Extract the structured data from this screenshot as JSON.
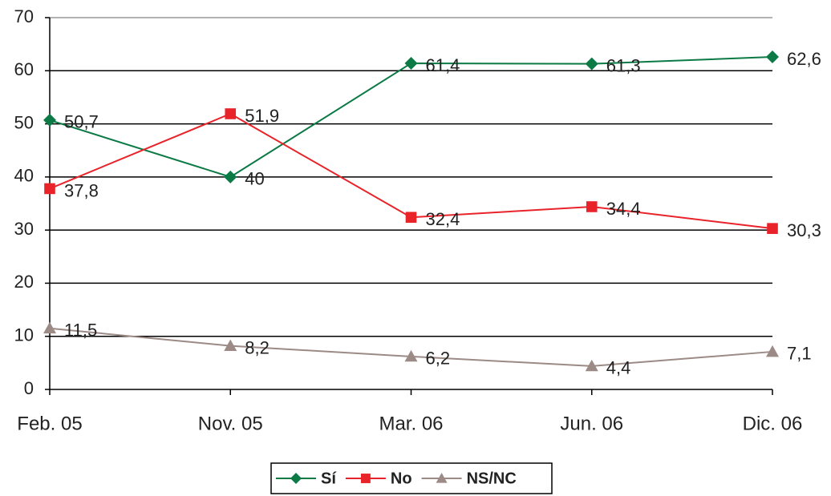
{
  "chart_data": {
    "type": "line",
    "categories": [
      "Feb. 05",
      "Nov. 05",
      "Mar. 06",
      "Jun. 06",
      "Dic. 06"
    ],
    "series": [
      {
        "name": "Sí",
        "color": "#0b7a45",
        "marker": "diamond",
        "values": [
          50.7,
          40,
          61.4,
          61.3,
          62.6
        ],
        "value_labels": [
          "50,7",
          "40",
          "61,4",
          "61,3",
          "62,6"
        ]
      },
      {
        "name": "No",
        "color": "#e8232a",
        "marker": "square",
        "values": [
          37.8,
          51.9,
          32.4,
          34.4,
          30.3
        ],
        "value_labels": [
          "37,8",
          "51,9",
          "32,4",
          "34,4",
          "30,3"
        ]
      },
      {
        "name": "NS/NC",
        "color": "#9b8a85",
        "marker": "triangle",
        "values": [
          11.5,
          8.2,
          6.2,
          4.4,
          7.1
        ],
        "value_labels": [
          "11,5",
          "8,2",
          "6,2",
          "4,4",
          "7,1"
        ]
      }
    ],
    "ylim": [
      0,
      70
    ],
    "yticks": [
      0,
      10,
      20,
      30,
      40,
      50,
      60,
      70
    ],
    "grid": true,
    "legend": "bottom"
  }
}
